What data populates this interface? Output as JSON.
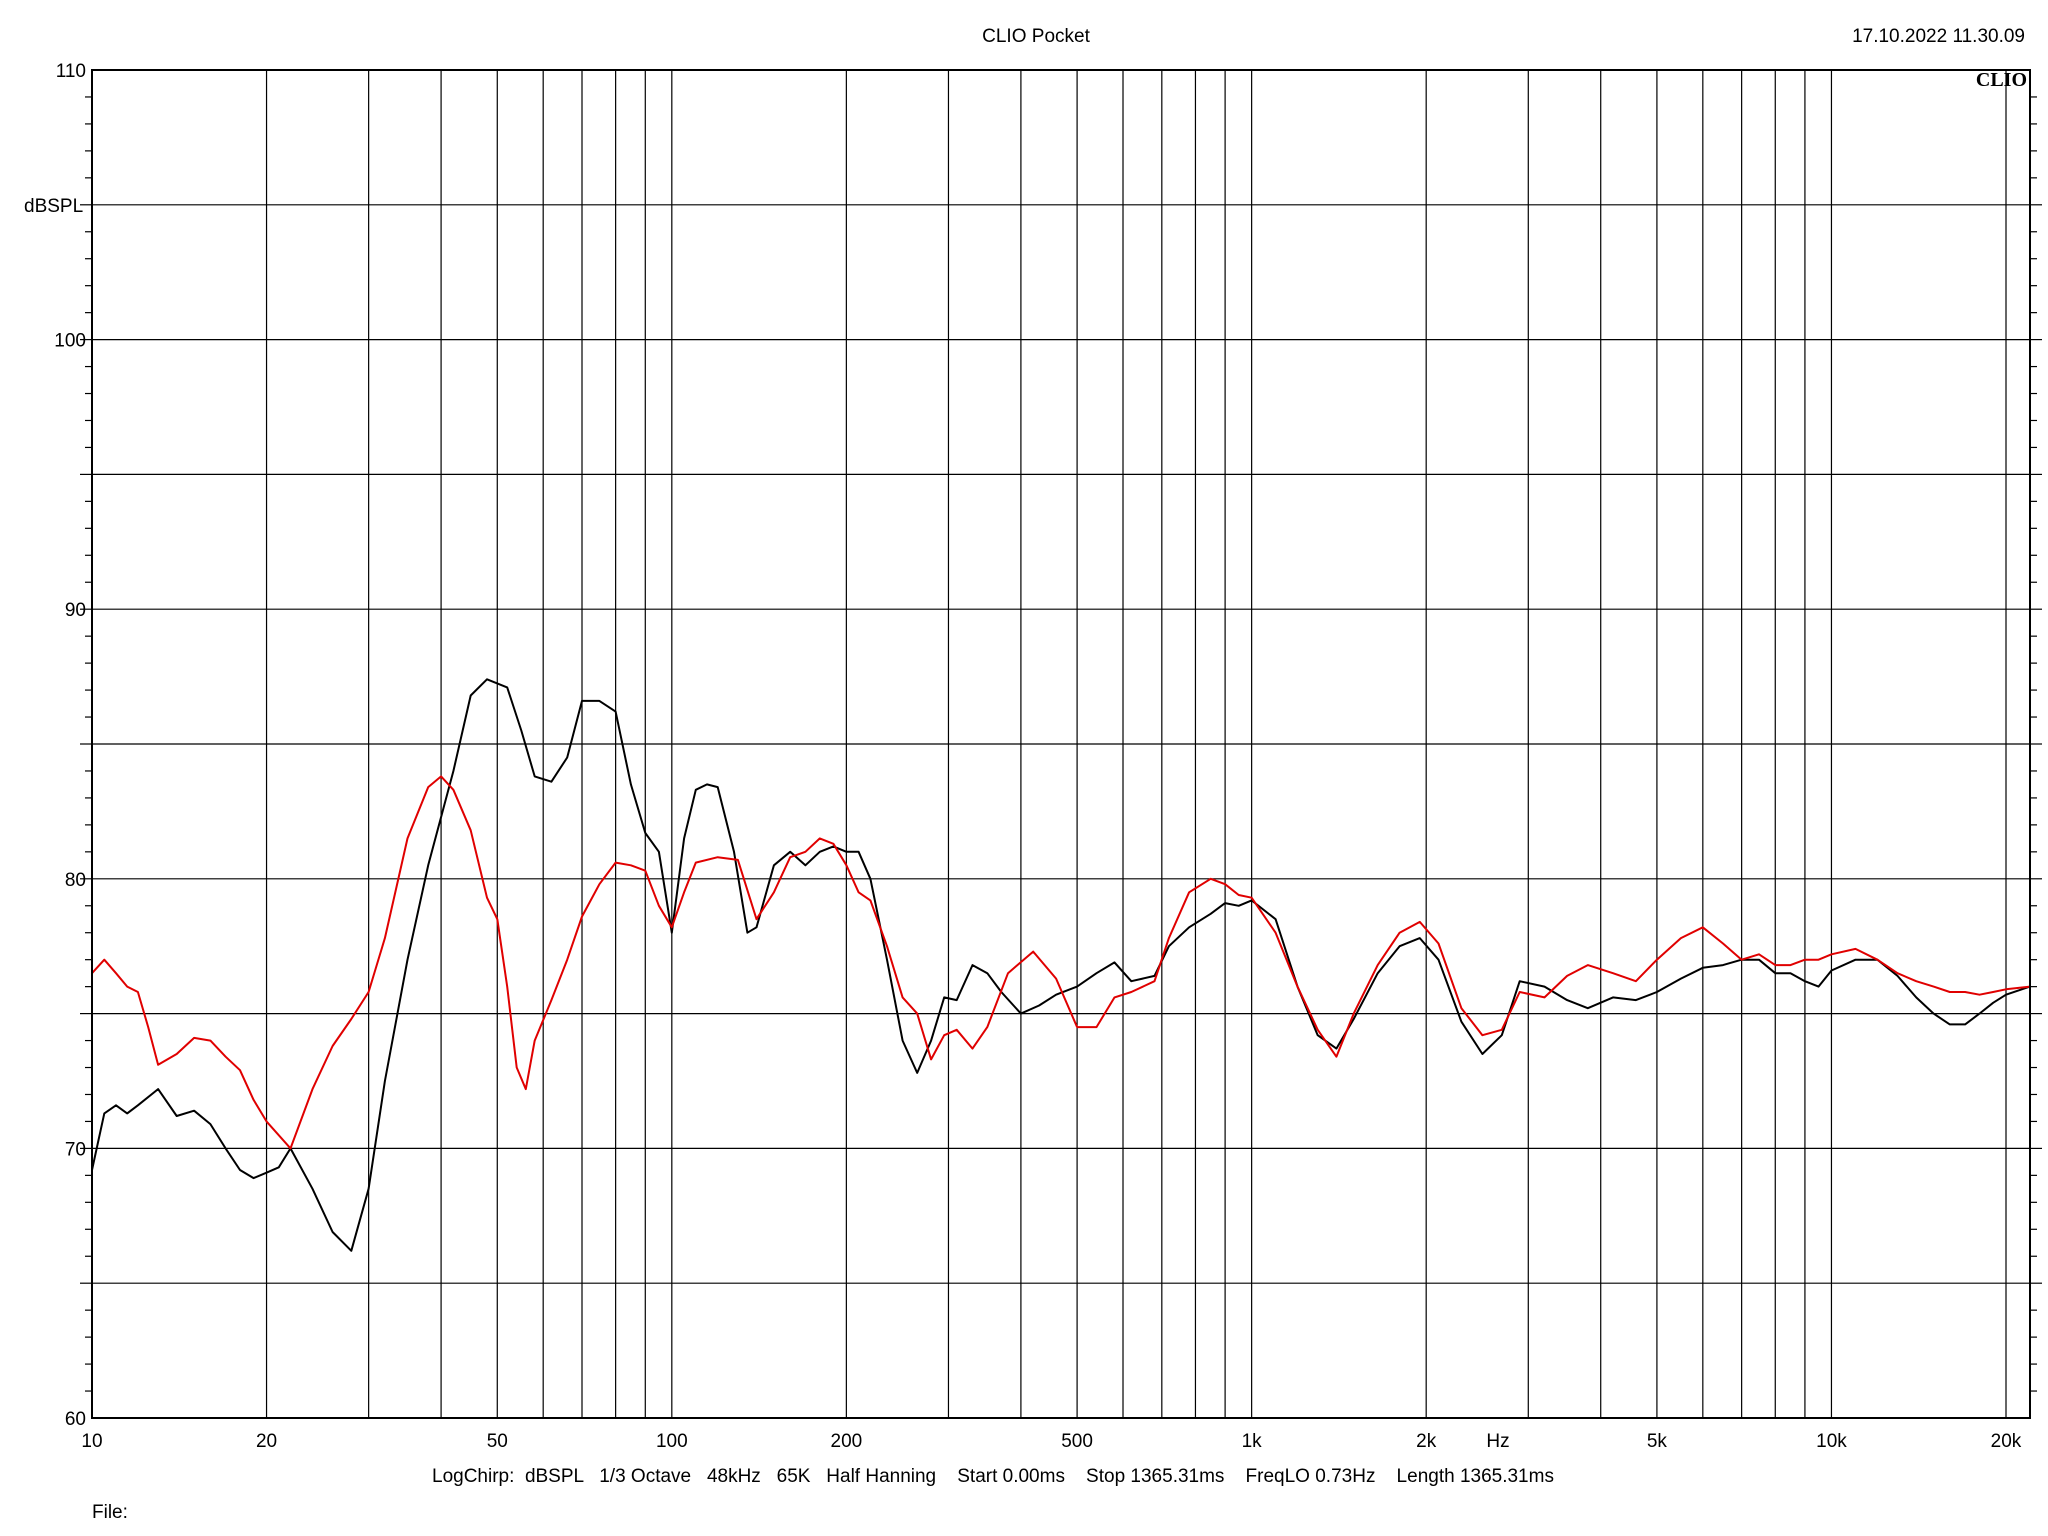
{
  "header": {
    "title": "CLIO Pocket",
    "timestamp": "17.10.2022 11.30.09",
    "logo": "CLIO"
  },
  "footer": {
    "settings": "LogChirp:  dBSPL   1/3 Octave   48kHz   65K   Half Hanning    Start 0.00ms    Stop 1365.31ms    FreqLO 0.73Hz    Length 1365.31ms",
    "file_label": "File:"
  },
  "colors": {
    "series_1": "#000000",
    "series_2": "#e00000",
    "grid": "#000000",
    "background": "#ffffff"
  },
  "chart_data": {
    "type": "line",
    "title": "",
    "xlabel": "Hz",
    "ylabel": "dBSPL",
    "xscale": "log",
    "xlim": [
      10,
      22000
    ],
    "ylim": [
      60,
      110
    ],
    "grid": true,
    "x_ticks": [
      {
        "value": 10,
        "label": "10"
      },
      {
        "value": 20,
        "label": "20"
      },
      {
        "value": 50,
        "label": "50"
      },
      {
        "value": 100,
        "label": "100"
      },
      {
        "value": 200,
        "label": "200"
      },
      {
        "value": 500,
        "label": "500"
      },
      {
        "value": 1000,
        "label": "1k"
      },
      {
        "value": 2000,
        "label": "2k"
      },
      {
        "value": 5000,
        "label": "5k"
      },
      {
        "value": 10000,
        "label": "10k"
      },
      {
        "value": 20000,
        "label": "20k"
      }
    ],
    "y_ticks": [
      {
        "value": 60,
        "label": "60"
      },
      {
        "value": 70,
        "label": "70"
      },
      {
        "value": 80,
        "label": "80"
      },
      {
        "value": 90,
        "label": "90"
      },
      {
        "value": 100,
        "label": "100"
      },
      {
        "value": 110,
        "label": "110"
      }
    ],
    "series": [
      {
        "color": "#000000",
        "points": [
          [
            10,
            69.2
          ],
          [
            10.5,
            71.3
          ],
          [
            11,
            71.6
          ],
          [
            11.5,
            71.3
          ],
          [
            12,
            71.6
          ],
          [
            13,
            72.2
          ],
          [
            14,
            71.2
          ],
          [
            15,
            71.4
          ],
          [
            16,
            70.9
          ],
          [
            17,
            70
          ],
          [
            18,
            69.2
          ],
          [
            19,
            68.9
          ],
          [
            20,
            69.1
          ],
          [
            21,
            69.3
          ],
          [
            22,
            70
          ],
          [
            24,
            68.5
          ],
          [
            26,
            66.9
          ],
          [
            28,
            66.2
          ],
          [
            30,
            68.5
          ],
          [
            32,
            72.5
          ],
          [
            35,
            77
          ],
          [
            38,
            80.5
          ],
          [
            42,
            84
          ],
          [
            45,
            86.8
          ],
          [
            48,
            87.4
          ],
          [
            52,
            87.1
          ],
          [
            55,
            85.5
          ],
          [
            58,
            83.8
          ],
          [
            62,
            83.6
          ],
          [
            66,
            84.5
          ],
          [
            70,
            86.6
          ],
          [
            75,
            86.6
          ],
          [
            80,
            86.2
          ],
          [
            85,
            83.5
          ],
          [
            90,
            81.7
          ],
          [
            95,
            81
          ],
          [
            100,
            78
          ],
          [
            105,
            81.5
          ],
          [
            110,
            83.3
          ],
          [
            115,
            83.5
          ],
          [
            120,
            83.4
          ],
          [
            128,
            81
          ],
          [
            135,
            78
          ],
          [
            140,
            78.2
          ],
          [
            150,
            80.5
          ],
          [
            160,
            81
          ],
          [
            170,
            80.5
          ],
          [
            180,
            81
          ],
          [
            190,
            81.2
          ],
          [
            200,
            81
          ],
          [
            210,
            81
          ],
          [
            220,
            80
          ],
          [
            235,
            77
          ],
          [
            250,
            74
          ],
          [
            265,
            72.8
          ],
          [
            280,
            74
          ],
          [
            295,
            75.6
          ],
          [
            310,
            75.5
          ],
          [
            330,
            76.8
          ],
          [
            350,
            76.5
          ],
          [
            370,
            75.8
          ],
          [
            400,
            75
          ],
          [
            430,
            75.3
          ],
          [
            460,
            75.7
          ],
          [
            500,
            76
          ],
          [
            540,
            76.5
          ],
          [
            580,
            76.9
          ],
          [
            620,
            76.2
          ],
          [
            680,
            76.4
          ],
          [
            720,
            77.5
          ],
          [
            780,
            78.2
          ],
          [
            850,
            78.7
          ],
          [
            900,
            79.1
          ],
          [
            950,
            79
          ],
          [
            1000,
            79.2
          ],
          [
            1100,
            78.5
          ],
          [
            1200,
            76
          ],
          [
            1300,
            74.2
          ],
          [
            1400,
            73.7
          ],
          [
            1500,
            74.8
          ],
          [
            1650,
            76.5
          ],
          [
            1800,
            77.5
          ],
          [
            1950,
            77.8
          ],
          [
            2100,
            77
          ],
          [
            2300,
            74.7
          ],
          [
            2500,
            73.5
          ],
          [
            2700,
            74.2
          ],
          [
            2900,
            76.2
          ],
          [
            3200,
            76
          ],
          [
            3500,
            75.5
          ],
          [
            3800,
            75.2
          ],
          [
            4200,
            75.6
          ],
          [
            4600,
            75.5
          ],
          [
            5000,
            75.8
          ],
          [
            5500,
            76.3
          ],
          [
            6000,
            76.7
          ],
          [
            6500,
            76.8
          ],
          [
            7000,
            77
          ],
          [
            7500,
            77
          ],
          [
            8000,
            76.5
          ],
          [
            8500,
            76.5
          ],
          [
            9000,
            76.2
          ],
          [
            9500,
            76
          ],
          [
            10000,
            76.6
          ],
          [
            11000,
            77
          ],
          [
            12000,
            77
          ],
          [
            13000,
            76.4
          ],
          [
            14000,
            75.6
          ],
          [
            15000,
            75
          ],
          [
            16000,
            74.6
          ],
          [
            17000,
            74.6
          ],
          [
            18000,
            75
          ],
          [
            19000,
            75.4
          ],
          [
            20000,
            75.7
          ],
          [
            22000,
            76
          ]
        ]
      },
      {
        "color": "#e00000",
        "points": [
          [
            10,
            76.5
          ],
          [
            10.5,
            77
          ],
          [
            11,
            76.5
          ],
          [
            11.5,
            76
          ],
          [
            12,
            75.8
          ],
          [
            12.5,
            74.5
          ],
          [
            13,
            73.1
          ],
          [
            14,
            73.5
          ],
          [
            15,
            74.1
          ],
          [
            16,
            74
          ],
          [
            17,
            73.4
          ],
          [
            18,
            72.9
          ],
          [
            19,
            71.8
          ],
          [
            20,
            71
          ],
          [
            22,
            70
          ],
          [
            24,
            72.2
          ],
          [
            26,
            73.8
          ],
          [
            28,
            74.8
          ],
          [
            30,
            75.8
          ],
          [
            32,
            77.8
          ],
          [
            35,
            81.5
          ],
          [
            38,
            83.4
          ],
          [
            40,
            83.8
          ],
          [
            42,
            83.3
          ],
          [
            45,
            81.8
          ],
          [
            48,
            79.3
          ],
          [
            50,
            78.5
          ],
          [
            52,
            76
          ],
          [
            54,
            73
          ],
          [
            56,
            72.2
          ],
          [
            58,
            74
          ],
          [
            62,
            75.5
          ],
          [
            66,
            77
          ],
          [
            70,
            78.6
          ],
          [
            75,
            79.8
          ],
          [
            80,
            80.6
          ],
          [
            85,
            80.5
          ],
          [
            90,
            80.3
          ],
          [
            95,
            79
          ],
          [
            100,
            78.2
          ],
          [
            105,
            79.5
          ],
          [
            110,
            80.6
          ],
          [
            120,
            80.8
          ],
          [
            130,
            80.7
          ],
          [
            140,
            78.5
          ],
          [
            150,
            79.5
          ],
          [
            160,
            80.8
          ],
          [
            170,
            81
          ],
          [
            180,
            81.5
          ],
          [
            190,
            81.3
          ],
          [
            200,
            80.5
          ],
          [
            210,
            79.5
          ],
          [
            220,
            79.2
          ],
          [
            235,
            77.5
          ],
          [
            250,
            75.6
          ],
          [
            265,
            75
          ],
          [
            280,
            73.3
          ],
          [
            295,
            74.2
          ],
          [
            310,
            74.4
          ],
          [
            330,
            73.7
          ],
          [
            350,
            74.5
          ],
          [
            380,
            76.5
          ],
          [
            420,
            77.3
          ],
          [
            460,
            76.3
          ],
          [
            500,
            74.5
          ],
          [
            540,
            74.5
          ],
          [
            580,
            75.6
          ],
          [
            620,
            75.8
          ],
          [
            680,
            76.2
          ],
          [
            720,
            77.8
          ],
          [
            780,
            79.5
          ],
          [
            850,
            80
          ],
          [
            900,
            79.8
          ],
          [
            950,
            79.4
          ],
          [
            1000,
            79.3
          ],
          [
            1100,
            78
          ],
          [
            1200,
            76
          ],
          [
            1300,
            74.4
          ],
          [
            1400,
            73.4
          ],
          [
            1500,
            75
          ],
          [
            1650,
            76.8
          ],
          [
            1800,
            78
          ],
          [
            1950,
            78.4
          ],
          [
            2100,
            77.6
          ],
          [
            2300,
            75.2
          ],
          [
            2500,
            74.2
          ],
          [
            2700,
            74.4
          ],
          [
            2900,
            75.8
          ],
          [
            3200,
            75.6
          ],
          [
            3500,
            76.4
          ],
          [
            3800,
            76.8
          ],
          [
            4200,
            76.5
          ],
          [
            4600,
            76.2
          ],
          [
            5000,
            77
          ],
          [
            5500,
            77.8
          ],
          [
            6000,
            78.2
          ],
          [
            6500,
            77.6
          ],
          [
            7000,
            77
          ],
          [
            7500,
            77.2
          ],
          [
            8000,
            76.8
          ],
          [
            8500,
            76.8
          ],
          [
            9000,
            77
          ],
          [
            9500,
            77
          ],
          [
            10000,
            77.2
          ],
          [
            11000,
            77.4
          ],
          [
            12000,
            77
          ],
          [
            13000,
            76.5
          ],
          [
            14000,
            76.2
          ],
          [
            15000,
            76
          ],
          [
            16000,
            75.8
          ],
          [
            17000,
            75.8
          ],
          [
            18000,
            75.7
          ],
          [
            19000,
            75.8
          ],
          [
            20000,
            75.9
          ],
          [
            22000,
            76
          ]
        ]
      }
    ]
  }
}
